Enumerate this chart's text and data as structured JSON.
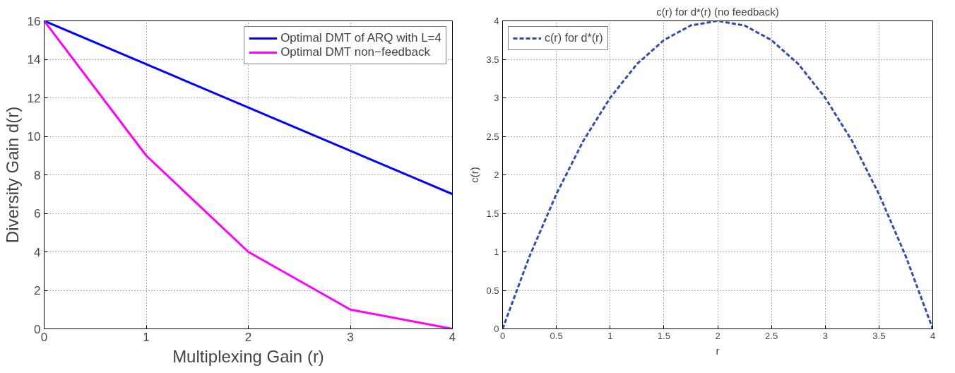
{
  "chart_data": [
    {
      "type": "line",
      "xlabel": "Multiplexing Gain (r)",
      "ylabel": "Diversity Gain d(r)",
      "xlim": [
        0,
        4
      ],
      "ylim": [
        0,
        16
      ],
      "xticks": [
        0,
        1,
        2,
        3,
        4
      ],
      "yticks": [
        0,
        2,
        4,
        6,
        8,
        10,
        12,
        14,
        16
      ],
      "grid": true,
      "legend": "top right",
      "line_style": "solid",
      "series": [
        {
          "name": "Optimal DMT of ARQ with L=4",
          "color": "#0000ff",
          "x": [
            0,
            4
          ],
          "values": [
            16,
            7
          ]
        },
        {
          "name": "Optimal DMT non−feedback",
          "color": "#ff00ff",
          "x": [
            0,
            1,
            2,
            3,
            4
          ],
          "values": [
            16,
            9,
            4,
            1,
            0
          ]
        }
      ]
    },
    {
      "type": "line",
      "title": "c(r) for d*(r) (no feedback)",
      "xlabel": "r",
      "ylabel": "c(r)",
      "xlim": [
        0,
        4
      ],
      "ylim": [
        0,
        4
      ],
      "xticks": [
        0,
        0.5,
        1,
        1.5,
        2,
        2.5,
        3,
        3.5,
        4
      ],
      "yticks": [
        0,
        0.5,
        1,
        1.5,
        2,
        2.5,
        3,
        3.5,
        4
      ],
      "grid": true,
      "legend": "top left",
      "line_style": "dashed",
      "series": [
        {
          "name": "c(r) for d*(r)",
          "color": "#2f4fa8",
          "x": [
            0,
            0.25,
            0.5,
            0.75,
            1,
            1.25,
            1.5,
            1.75,
            2,
            2.25,
            2.5,
            2.75,
            3,
            3.25,
            3.5,
            3.75,
            4
          ],
          "values": [
            0,
            0.94,
            1.75,
            2.44,
            3,
            3.44,
            3.75,
            3.94,
            4,
            3.94,
            3.75,
            3.44,
            3,
            2.44,
            1.75,
            0.94,
            0
          ]
        }
      ]
    }
  ]
}
